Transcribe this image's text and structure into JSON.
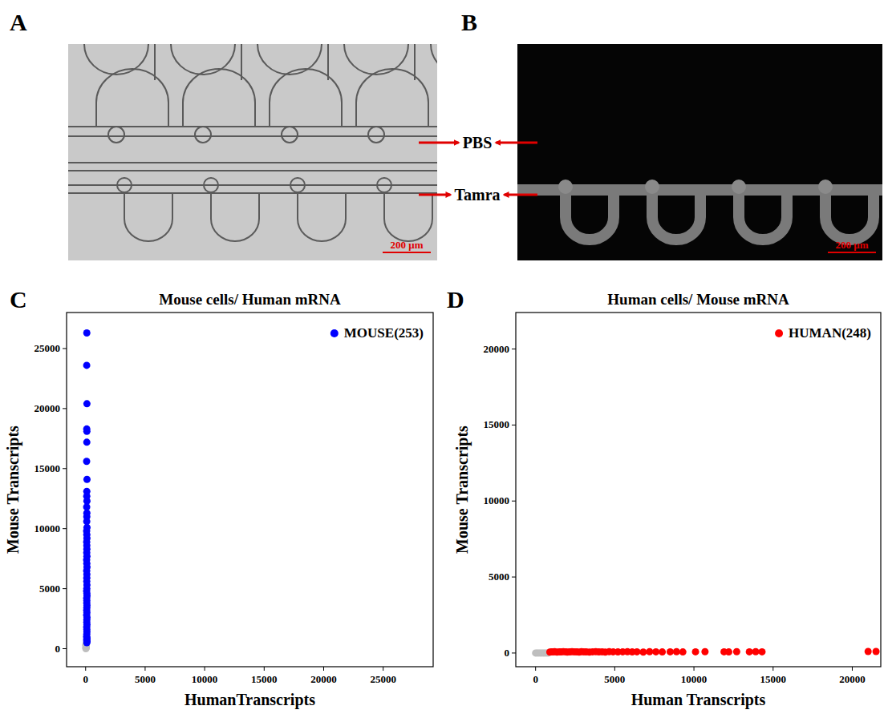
{
  "panels": [
    {
      "panel": "A",
      "scale_bar": "200 μm"
    },
    {
      "panel": "B",
      "scale_bar": "200 μm"
    }
  ],
  "channel_labels": [
    "PBS",
    "Tamra"
  ],
  "chart_data": [
    {
      "type": "scatter",
      "panel": "C",
      "title": "Mouse cells/ Human mRNA",
      "x_label": "HumanTranscripts",
      "y_label": "Mouse Transcripts",
      "xlim": [
        -1600,
        29200
      ],
      "ylim": [
        -1500,
        28000
      ],
      "xticks": [
        0,
        5000,
        10000,
        15000,
        20000,
        25000
      ],
      "yticks": [
        0,
        5000,
        10000,
        15000,
        20000,
        25000
      ],
      "grid": false,
      "legend": "top-right",
      "series": [
        {
          "name": "MOUSE(253)",
          "color": "#0000ff",
          "marker": "circle",
          "x": [
            100,
            90,
            110,
            95,
            105,
            100,
            85,
            115,
            100,
            95,
            110,
            90,
            105,
            100,
            95,
            115,
            85,
            100,
            110,
            90,
            100,
            105,
            95,
            110,
            85,
            100,
            115,
            90,
            105,
            100,
            95,
            110,
            100,
            85,
            105,
            115,
            90,
            100,
            95,
            110,
            100,
            90,
            105,
            85,
            115,
            100,
            95,
            110,
            90,
            100,
            105,
            95,
            85,
            110,
            100,
            90,
            115,
            100
          ],
          "values": [
            26300,
            23600,
            20400,
            18300,
            18100,
            17200,
            15600,
            14100,
            13100,
            12700,
            12300,
            11800,
            11300,
            11000,
            10600,
            10100,
            9800,
            9500,
            9200,
            8900,
            8600,
            8300,
            8000,
            7700,
            7400,
            7100,
            6800,
            6500,
            6200,
            5900,
            5600,
            5300,
            5000,
            4800,
            4600,
            4400,
            4200,
            4000,
            3800,
            3600,
            3400,
            3200,
            3000,
            2800,
            2600,
            2400,
            2200,
            2000,
            1800,
            1600,
            1400,
            1200,
            1000,
            900,
            800,
            700,
            600,
            500
          ]
        },
        {
          "color": "#bebebe",
          "marker": "circle",
          "x": [
            20,
            40,
            30,
            50,
            10,
            60,
            25,
            45
          ],
          "values": [
            0,
            50,
            120,
            200,
            300,
            400,
            80,
            250
          ]
        }
      ]
    },
    {
      "type": "scatter",
      "panel": "D",
      "title": "Human cells/ Mouse mRNA",
      "x_label": "Human Transcripts",
      "y_label": "Mouse Transcripts",
      "xlim": [
        -1250,
        21800
      ],
      "ylim": [
        -900,
        22400
      ],
      "xticks": [
        0,
        5000,
        10000,
        15000,
        20000
      ],
      "yticks": [
        0,
        5000,
        10000,
        15000,
        20000
      ],
      "grid": false,
      "legend": "top-right",
      "series": [
        {
          "name": "HUMAN(248)",
          "color": "#ff0000",
          "marker": "circle",
          "x": [
            900,
            1000,
            1100,
            1200,
            1350,
            1500,
            1600,
            1750,
            1900,
            2000,
            2150,
            2300,
            2450,
            2600,
            2750,
            2900,
            3050,
            3200,
            3400,
            3600,
            3800,
            4000,
            4200,
            4400,
            4650,
            4900,
            5200,
            5500,
            5800,
            6100,
            6400,
            6800,
            7200,
            7600,
            8000,
            8500,
            8900,
            9300,
            10100,
            10700,
            11900,
            12200,
            12700,
            13500,
            13900,
            14300,
            21000,
            21500
          ],
          "values": [
            60,
            80,
            70,
            90,
            60,
            80,
            70,
            90,
            80,
            60,
            70,
            90,
            80,
            70,
            60,
            90,
            80,
            70,
            60,
            80,
            90,
            70,
            80,
            60,
            90,
            80,
            70,
            80,
            90,
            70,
            80,
            60,
            90,
            80,
            70,
            80,
            90,
            70,
            80,
            90,
            80,
            70,
            90,
            80,
            90,
            80,
            100,
            100
          ]
        },
        {
          "color": "#bebebe",
          "marker": "circle",
          "x": [
            0,
            100,
            200,
            300,
            400,
            500,
            600,
            700,
            800
          ],
          "values": [
            0,
            0,
            0,
            0,
            0,
            0,
            0,
            0,
            0
          ]
        }
      ]
    }
  ]
}
